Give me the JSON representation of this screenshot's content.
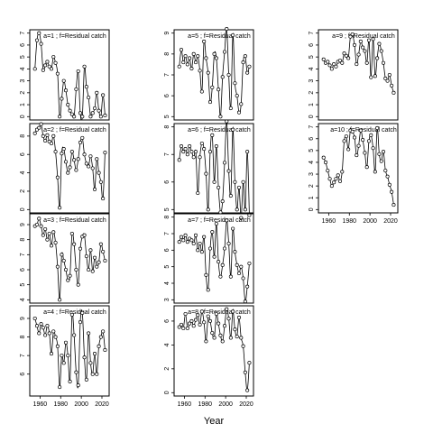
{
  "xlabel": "Year",
  "chart_data": [
    {
      "type": "line",
      "title": "a=1 ; f=Residual catch",
      "ylim": [
        0,
        7
      ],
      "yticks": [
        0,
        1,
        2,
        3,
        4,
        5,
        6,
        7
      ],
      "x": [
        1955,
        1957,
        1959,
        1961,
        1963,
        1965,
        1967,
        1969,
        1971,
        1973,
        1975,
        1977,
        1979,
        1981,
        1983,
        1985,
        1987,
        1989,
        1991,
        1993,
        1995,
        1997,
        1999,
        2001,
        2003,
        2005,
        2007,
        2009,
        2011,
        2013,
        2015,
        2017,
        2019,
        2021,
        2023
      ],
      "y": [
        4.0,
        6.4,
        7.0,
        6.1,
        3.9,
        4.3,
        4.6,
        4.2,
        4.0,
        5.0,
        4.5,
        3.6,
        0.0,
        1.5,
        3.0,
        2.2,
        1.0,
        0.5,
        0.2,
        0.0,
        2.3,
        3.8,
        0.3,
        0.0,
        4.2,
        2.5,
        1.6,
        0.0,
        0.3,
        0.7,
        2.0,
        0.5,
        0.0,
        1.8,
        0.1
      ]
    },
    {
      "type": "line",
      "title": "a=5 ; f=Residual catch",
      "ylim": [
        5,
        9
      ],
      "yticks": [
        5,
        6,
        7,
        8,
        9
      ],
      "x": [
        1955,
        1957,
        1959,
        1961,
        1963,
        1965,
        1967,
        1969,
        1971,
        1973,
        1975,
        1977,
        1979,
        1981,
        1983,
        1985,
        1987,
        1989,
        1991,
        1993,
        1995,
        1997,
        1999,
        2001,
        2003,
        2005,
        2007,
        2009,
        2011,
        2013,
        2015,
        2017,
        2019,
        2021,
        2023
      ],
      "y": [
        7.4,
        8.2,
        7.6,
        7.9,
        7.5,
        7.8,
        7.3,
        8.0,
        7.6,
        7.9,
        7.2,
        6.2,
        8.6,
        7.8,
        7.1,
        5.7,
        6.4,
        8.0,
        7.8,
        6.3,
        5.0,
        6.9,
        8.1,
        9.2,
        7.0,
        5.4,
        8.9,
        6.6,
        6.0,
        5.2,
        5.6,
        7.6,
        7.9,
        7.1,
        7.4
      ]
    },
    {
      "type": "line",
      "title": "a=9 ; f=Residual catch",
      "ylim": [
        0,
        7
      ],
      "yticks": [
        0,
        1,
        2,
        3,
        4,
        5,
        6,
        7
      ],
      "x": [
        1955,
        1957,
        1959,
        1961,
        1963,
        1965,
        1967,
        1969,
        1971,
        1973,
        1975,
        1977,
        1979,
        1981,
        1983,
        1985,
        1987,
        1989,
        1991,
        1993,
        1995,
        1997,
        1999,
        2001,
        2003,
        2005,
        2007,
        2009,
        2011,
        2013,
        2015,
        2017,
        2019,
        2021,
        2023
      ],
      "y": [
        4.8,
        4.5,
        4.6,
        4.3,
        4.0,
        4.4,
        4.2,
        4.6,
        4.7,
        4.5,
        5.3,
        5.1,
        4.9,
        6.7,
        6.9,
        6.0,
        4.4,
        5.2,
        6.3,
        5.8,
        5.5,
        4.5,
        6.4,
        3.3,
        6.5,
        3.4,
        4.9,
        6.1,
        5.5,
        4.5,
        3.2,
        3.0,
        3.5,
        2.6,
        2.0
      ]
    },
    {
      "type": "line",
      "title": "a=2 ; f=Residual catch",
      "ylim": [
        0,
        9
      ],
      "yticks": [
        0,
        2,
        4,
        6,
        8
      ],
      "x": [
        1955,
        1957,
        1959,
        1961,
        1963,
        1965,
        1967,
        1969,
        1971,
        1973,
        1975,
        1977,
        1979,
        1981,
        1983,
        1985,
        1987,
        1989,
        1991,
        1993,
        1995,
        1997,
        1999,
        2001,
        2003,
        2005,
        2007,
        2009,
        2011,
        2013,
        2015,
        2017,
        2019,
        2021,
        2023
      ],
      "y": [
        8.3,
        8.7,
        8.9,
        9.3,
        8.0,
        7.5,
        8.1,
        7.4,
        7.2,
        8.0,
        6.3,
        3.5,
        0.2,
        6.1,
        6.6,
        5.2,
        4.0,
        4.6,
        6.3,
        5.4,
        4.3,
        5.5,
        7.3,
        7.8,
        6.0,
        5.0,
        4.7,
        5.8,
        4.5,
        2.2,
        5.5,
        4.0,
        3.0,
        1.2,
        6.2
      ]
    },
    {
      "type": "line",
      "title": "a=6 ; f=Residual catch",
      "ylim": [
        5,
        8
      ],
      "yticks": [
        5,
        6,
        7,
        8
      ],
      "x": [
        1955,
        1957,
        1959,
        1961,
        1963,
        1965,
        1967,
        1969,
        1971,
        1973,
        1975,
        1977,
        1979,
        1981,
        1983,
        1985,
        1987,
        1989,
        1991,
        1993,
        1995,
        1997,
        1999,
        2001,
        2003,
        2005,
        2007,
        2009,
        2011,
        2013,
        2015,
        2017,
        2019,
        2021,
        2023
      ],
      "y": [
        6.8,
        7.3,
        7.1,
        7.2,
        7.0,
        7.3,
        7.1,
        6.9,
        7.1,
        5.6,
        6.9,
        7.4,
        7.2,
        6.3,
        5.0,
        7.1,
        7.7,
        6.0,
        7.3,
        5.8,
        4.9,
        5.3,
        6.7,
        8.2,
        6.4,
        5.5,
        7.9,
        6.0,
        5.0,
        5.8,
        4.7,
        6.0,
        5.0,
        7.1,
        4.8
      ]
    },
    {
      "type": "line",
      "title": "a=10 ; f=Residual catch",
      "ylim": [
        0,
        7
      ],
      "yticks": [
        0,
        1,
        2,
        3,
        4,
        5,
        6,
        7
      ],
      "x": [
        1955,
        1957,
        1959,
        1961,
        1963,
        1965,
        1967,
        1969,
        1971,
        1973,
        1975,
        1977,
        1979,
        1981,
        1983,
        1985,
        1987,
        1989,
        1991,
        1993,
        1995,
        1997,
        1999,
        2001,
        2003,
        2005,
        2007,
        2009,
        2011,
        2013,
        2015,
        2017,
        2019,
        2021,
        2023
      ],
      "y": [
        4.4,
        4.0,
        3.3,
        2.6,
        2.0,
        2.3,
        2.6,
        2.9,
        2.4,
        3.2,
        5.8,
        6.2,
        5.1,
        6.7,
        6.6,
        6.1,
        4.6,
        5.4,
        6.7,
        5.9,
        4.8,
        3.6,
        5.8,
        6.3,
        5.2,
        3.2,
        6.9,
        4.7,
        4.1,
        4.9,
        3.3,
        2.8,
        2.1,
        1.5,
        0.4
      ]
    },
    {
      "type": "line",
      "title": "a=3 ; f=Residual catch",
      "ylim": [
        4,
        9.5
      ],
      "yticks": [
        4,
        5,
        6,
        7,
        8,
        9
      ],
      "x": [
        1955,
        1957,
        1959,
        1961,
        1963,
        1965,
        1967,
        1969,
        1971,
        1973,
        1975,
        1977,
        1979,
        1981,
        1983,
        1985,
        1987,
        1989,
        1991,
        1993,
        1995,
        1997,
        1999,
        2001,
        2003,
        2005,
        2007,
        2009,
        2011,
        2013,
        2015,
        2017,
        2019,
        2021,
        2023
      ],
      "y": [
        8.9,
        9.0,
        9.4,
        8.9,
        8.3,
        8.7,
        8.0,
        8.4,
        7.6,
        8.5,
        7.8,
        6.2,
        4.0,
        7.0,
        6.6,
        6.0,
        5.3,
        5.6,
        8.4,
        7.7,
        6.0,
        5.0,
        7.4,
        8.2,
        8.3,
        6.9,
        6.0,
        7.3,
        5.9,
        6.8,
        6.2,
        6.5,
        7.7,
        7.2,
        6.6
      ]
    },
    {
      "type": "line",
      "title": "a=7 ; f=Residual catch",
      "ylim": [
        3,
        8
      ],
      "yticks": [
        3,
        4,
        5,
        6,
        7,
        8
      ],
      "x": [
        1955,
        1957,
        1959,
        1961,
        1963,
        1965,
        1967,
        1969,
        1971,
        1973,
        1975,
        1977,
        1979,
        1981,
        1983,
        1985,
        1987,
        1989,
        1991,
        1993,
        1995,
        1997,
        1999,
        2001,
        2003,
        2005,
        2007,
        2009,
        2011,
        2013,
        2015,
        2017,
        2019,
        2021,
        2023
      ],
      "y": [
        6.5,
        6.8,
        6.6,
        6.9,
        6.5,
        6.7,
        6.6,
        6.4,
        6.9,
        6.0,
        6.4,
        5.9,
        6.8,
        4.5,
        3.6,
        6.1,
        7.1,
        5.6,
        7.6,
        5.3,
        4.4,
        5.1,
        6.1,
        7.8,
        6.4,
        4.4,
        7.3,
        5.9,
        5.1,
        4.6,
        5.0,
        4.3,
        2.9,
        3.8,
        5.2
      ]
    },
    {
      "type": "line",
      "title": "a=4 ; f=Residual catch",
      "ylim": [
        5,
        9.5
      ],
      "yticks": [
        6,
        7,
        8,
        9
      ],
      "x": [
        1955,
        1957,
        1959,
        1961,
        1963,
        1965,
        1967,
        1969,
        1971,
        1973,
        1975,
        1977,
        1979,
        1981,
        1983,
        1985,
        1987,
        1989,
        1991,
        1993,
        1995,
        1997,
        1999,
        2001,
        2003,
        2005,
        2007,
        2009,
        2011,
        2013,
        2015,
        2017,
        2019,
        2021,
        2023
      ],
      "y": [
        9.0,
        8.6,
        8.2,
        8.7,
        8.5,
        8.1,
        8.6,
        8.2,
        7.1,
        8.3,
        8.0,
        7.5,
        5.3,
        7.0,
        6.6,
        7.7,
        7.0,
        5.6,
        9.2,
        8.1,
        6.1,
        5.4,
        8.8,
        9.3,
        6.9,
        5.7,
        8.2,
        6.6,
        6.0,
        7.1,
        6.0,
        7.5,
        8.0,
        8.3,
        7.3
      ]
    },
    {
      "type": "line",
      "title": "a=8 ; f=Residual catch",
      "ylim": [
        0,
        7
      ],
      "yticks": [
        0,
        2,
        4,
        6
      ],
      "x": [
        1955,
        1957,
        1959,
        1961,
        1963,
        1965,
        1967,
        1969,
        1971,
        1973,
        1975,
        1977,
        1979,
        1981,
        1983,
        1985,
        1987,
        1989,
        1991,
        1993,
        1995,
        1997,
        1999,
        2001,
        2003,
        2005,
        2007,
        2009,
        2011,
        2013,
        2015,
        2017,
        2019,
        2021,
        2023
      ],
      "y": [
        5.5,
        5.7,
        5.4,
        6.6,
        5.4,
        5.8,
        6.0,
        5.6,
        6.1,
        6.5,
        5.7,
        6.8,
        5.9,
        4.3,
        6.4,
        6.0,
        5.0,
        4.6,
        6.6,
        5.8,
        4.8,
        4.3,
        5.6,
        7.0,
        6.2,
        4.6,
        6.8,
        5.3,
        4.7,
        6.3,
        4.6,
        3.9,
        1.7,
        0.2,
        2.5
      ]
    }
  ],
  "xaxis": {
    "xlim": [
      1950,
      2027
    ],
    "ticks": [
      1960,
      1980,
      2000,
      2020
    ]
  }
}
